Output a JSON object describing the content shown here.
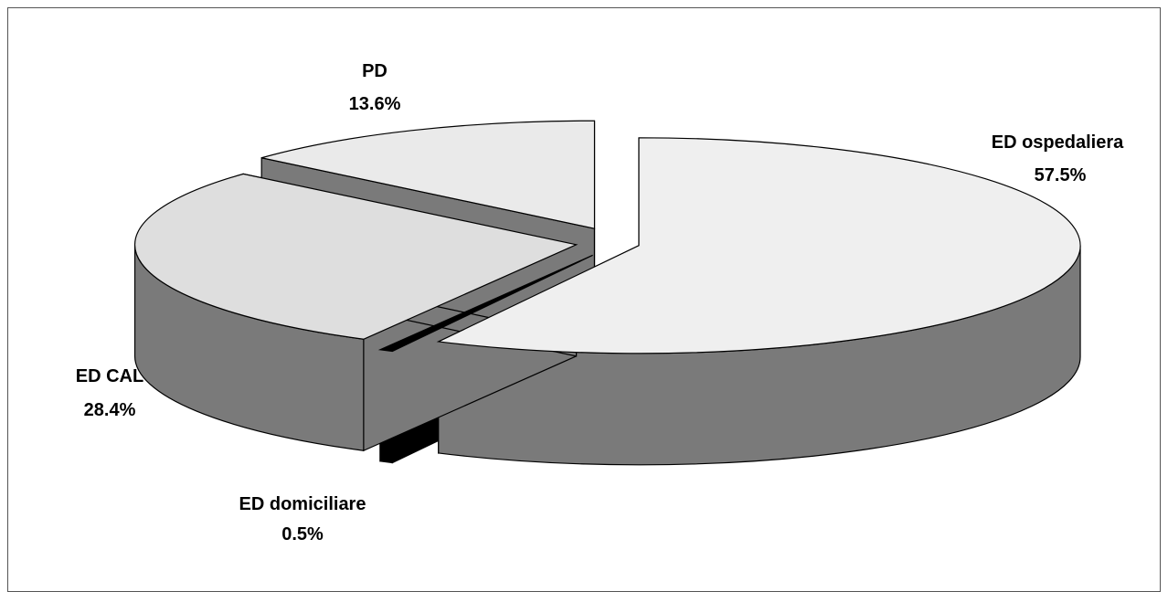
{
  "chart_data": {
    "type": "pie",
    "title": "",
    "categories": [
      "ED ospedaliera",
      "ED domiciliare",
      "ED CAL",
      "PD"
    ],
    "values": [
      57.5,
      0.5,
      28.4,
      13.6
    ],
    "labels": [
      "57.5%",
      "0.5%",
      "28.4%",
      "13.6%"
    ],
    "exploded": true,
    "style": "3d",
    "legend": "none",
    "colors": {
      "ED ospedaliera": "#efefef",
      "ED domiciliare": "#000000",
      "ED CAL": "#dedede",
      "PD": "#eaeaea",
      "side": "#7a7a7a",
      "outline": "#000000"
    }
  }
}
